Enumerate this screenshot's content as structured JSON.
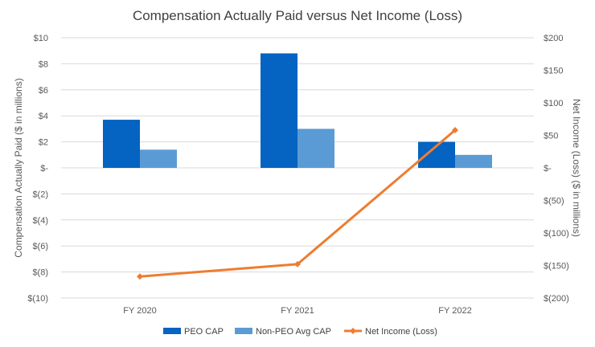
{
  "chart_data": {
    "type": "bar",
    "title": "Compensation Actually Paid versus Net Income (Loss)",
    "categories": [
      "FY 2020",
      "FY 2021",
      "FY 2022"
    ],
    "ylabel": "Compensation Actually Paid ($ in millions)",
    "y2label": "Net Income (Loss) ($ in millions)",
    "ylim": [
      -10,
      10
    ],
    "y2lim": [
      -200,
      200
    ],
    "yticks": [
      "$(10)",
      "$(8)",
      "$(6)",
      "$(4)",
      "$(2)",
      "$-",
      "$2",
      "$4",
      "$6",
      "$8",
      "$10"
    ],
    "y2ticks": [
      "$(200)",
      "$(150)",
      "$(100)",
      "$(50)",
      "$-",
      "$50",
      "$100",
      "$150",
      "$200"
    ],
    "grid": true,
    "legend_position": "bottom",
    "series": [
      {
        "name": "PEO CAP",
        "type": "bar",
        "axis": "left",
        "color": "#0563C1",
        "values": [
          3.7,
          8.8,
          2.0
        ]
      },
      {
        "name": "Non-PEO Avg CAP",
        "type": "bar",
        "axis": "left",
        "color": "#5B9BD5",
        "values": [
          1.4,
          3.0,
          1.0
        ]
      },
      {
        "name": "Net Income (Loss)",
        "type": "line",
        "axis": "right",
        "color": "#ED7D31",
        "values": [
          -167,
          -148,
          58
        ]
      }
    ]
  }
}
